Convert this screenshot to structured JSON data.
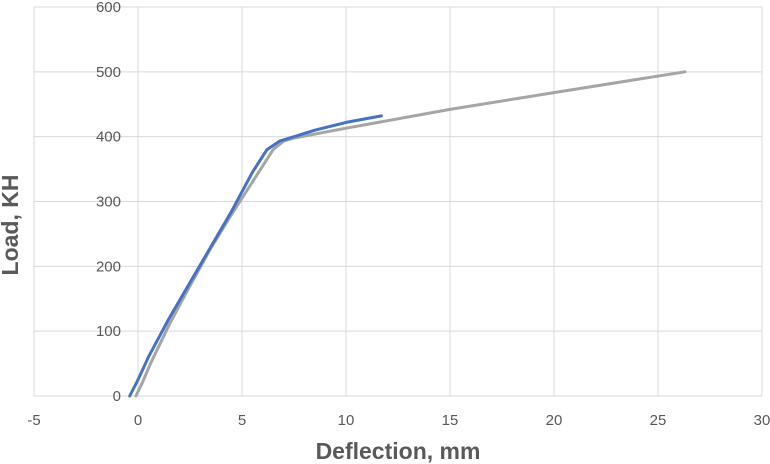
{
  "chart_data": {
    "type": "line",
    "title": "",
    "xlabel": "Deflection, mm",
    "ylabel": "Load, KH",
    "xlim": [
      -5,
      30
    ],
    "ylim": [
      0,
      600
    ],
    "x_ticks": [
      -5,
      0,
      5,
      10,
      15,
      20,
      25,
      30
    ],
    "y_ticks": [
      0,
      100,
      200,
      300,
      400,
      500,
      600
    ],
    "grid": true,
    "legend": "none",
    "series": [
      {
        "color": "#a5a5a5",
        "points": [
          [
            -0.1,
            0
          ],
          [
            0.2,
            20
          ],
          [
            0.6,
            50
          ],
          [
            1.5,
            110
          ],
          [
            2.5,
            170
          ],
          [
            3.5,
            228
          ],
          [
            4.5,
            280
          ],
          [
            5.5,
            330
          ],
          [
            6.0,
            355
          ],
          [
            6.5,
            380
          ],
          [
            7.0,
            393
          ],
          [
            7.5,
            398
          ],
          [
            10,
            413
          ],
          [
            15,
            442
          ],
          [
            20,
            468
          ],
          [
            26.3,
            500
          ]
        ]
      },
      {
        "color": "#4472c4",
        "points": [
          [
            -0.4,
            0
          ],
          [
            0,
            25
          ],
          [
            0.5,
            60
          ],
          [
            1.5,
            120
          ],
          [
            2.5,
            175
          ],
          [
            3.5,
            230
          ],
          [
            4.5,
            285
          ],
          [
            5.5,
            345
          ],
          [
            6.2,
            380
          ],
          [
            6.8,
            393
          ],
          [
            7.5,
            400
          ],
          [
            8.5,
            410
          ],
          [
            10,
            422
          ],
          [
            11.7,
            432
          ]
        ]
      }
    ]
  }
}
